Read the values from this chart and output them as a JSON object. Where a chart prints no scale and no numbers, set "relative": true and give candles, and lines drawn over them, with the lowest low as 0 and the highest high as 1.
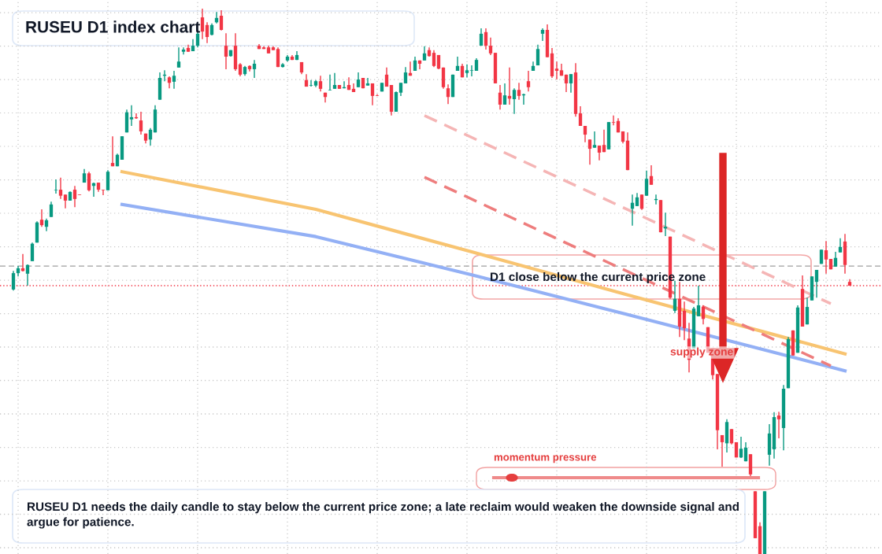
{
  "chart_data": {
    "type": "candlestick",
    "title": "RUSEU D1 index chart",
    "relative": true,
    "categories": [
      null,
      null,
      null,
      null,
      null,
      null,
      null,
      null,
      null,
      null,
      null,
      null,
      null,
      null,
      null,
      null,
      null,
      null,
      null,
      null,
      null,
      null,
      null,
      null,
      null,
      null,
      null,
      null,
      null,
      null,
      null,
      null,
      null,
      null,
      null,
      null,
      null,
      null,
      null,
      null,
      null,
      null,
      null,
      null,
      null,
      null,
      null,
      null,
      null,
      null,
      null,
      null,
      null,
      null,
      null,
      null,
      null,
      null,
      null,
      null,
      null,
      null,
      null,
      null,
      null,
      null,
      null,
      null,
      null,
      null,
      null,
      null,
      null,
      null,
      null,
      null,
      null,
      null,
      null,
      null,
      null,
      null,
      null,
      null,
      null,
      null,
      null,
      null,
      null,
      null,
      null,
      null,
      null,
      null,
      null,
      null,
      null,
      null,
      null,
      null,
      null,
      null,
      null,
      null,
      null,
      null,
      null,
      null,
      null,
      null,
      null,
      null,
      null,
      null,
      null,
      null,
      null,
      null,
      null,
      null,
      null,
      null,
      null,
      null,
      null,
      null,
      null,
      null,
      null,
      null,
      null,
      null,
      null,
      null,
      null,
      null,
      null,
      null,
      null,
      null,
      null,
      null,
      null,
      null,
      null,
      null,
      null,
      null,
      null,
      null,
      null,
      null,
      null,
      null,
      null,
      null,
      null,
      null,
      null,
      null,
      null,
      null,
      null,
      null,
      null,
      null,
      null,
      null,
      null,
      null,
      null,
      null,
      null,
      null,
      null,
      null,
      null,
      null
    ],
    "ohlc": [
      [
        0.485,
        0.519,
        0.483,
        0.515
      ],
      [
        0.515,
        0.528,
        0.509,
        0.524
      ],
      [
        0.524,
        0.55,
        0.518,
        0.519
      ],
      [
        0.514,
        0.531,
        0.492,
        0.53
      ],
      [
        0.537,
        0.571,
        0.537,
        0.569
      ],
      [
        0.571,
        0.61,
        0.571,
        0.608
      ],
      [
        0.613,
        0.632,
        0.6,
        0.603
      ],
      [
        0.6,
        0.615,
        0.592,
        0.612
      ],
      [
        0.618,
        0.646,
        0.618,
        0.641
      ],
      [
        0.667,
        0.687,
        0.661,
        0.668
      ],
      [
        0.668,
        0.69,
        0.651,
        0.657
      ],
      [
        0.659,
        0.659,
        0.634,
        0.648
      ],
      [
        0.648,
        0.665,
        0.648,
        0.664
      ],
      [
        0.668,
        0.675,
        0.636,
        0.651
      ],
      [
        0.659,
        0.659,
        0.658,
        0.658
      ],
      [
        0.681,
        0.706,
        0.681,
        0.698
      ],
      [
        0.698,
        0.701,
        0.665,
        0.667
      ],
      [
        0.675,
        0.681,
        0.655,
        0.68
      ],
      [
        0.681,
        0.681,
        0.664,
        0.668
      ],
      [
        0.668,
        0.668,
        0.658,
        0.667
      ],
      [
        0.667,
        0.704,
        0.667,
        0.701
      ],
      [
        0.717,
        0.766,
        0.711,
        0.711
      ],
      [
        0.711,
        0.734,
        0.711,
        0.732
      ],
      [
        0.723,
        0.766,
        0.723,
        0.766
      ],
      [
        0.773,
        0.815,
        0.773,
        0.81
      ],
      [
        0.797,
        0.823,
        0.785,
        0.801
      ],
      [
        0.801,
        0.808,
        0.798,
        0.799
      ],
      [
        0.795,
        0.811,
        0.769,
        0.775
      ],
      [
        0.771,
        0.771,
        0.753,
        0.758
      ],
      [
        0.76,
        0.781,
        0.749,
        0.778
      ],
      [
        0.773,
        0.823,
        0.773,
        0.815
      ],
      [
        0.833,
        0.883,
        0.833,
        0.873
      ],
      [
        0.877,
        0.887,
        0.867,
        0.879
      ],
      [
        0.874,
        0.876,
        0.854,
        0.864
      ],
      [
        0.866,
        0.886,
        0.853,
        0.877
      ],
      [
        0.892,
        0.929,
        0.892,
        0.903
      ],
      [
        0.921,
        0.929,
        0.916,
        0.925
      ],
      [
        0.928,
        0.934,
        0.921,
        0.921
      ],
      [
        0.922,
        0.944,
        0.922,
        0.932
      ],
      [
        0.932,
        0.958,
        0.929,
        0.954
      ],
      [
        0.984,
        1,
        0.944,
        0.958
      ],
      [
        0.97,
        0.975,
        0.937,
        0.948
      ],
      [
        0.952,
        0.973,
        0.951,
        0.97
      ],
      [
        0.975,
        0.994,
        0.973,
        0.983
      ],
      [
        0.987,
        0.997,
        0.96,
        0.961
      ],
      [
        0.932,
        0.955,
        0.889,
        0.912
      ],
      [
        0.913,
        0.924,
        0.912,
        0.924
      ],
      [
        0.932,
        0.955,
        0.886,
        0.889
      ],
      [
        0.898,
        0.9,
        0.876,
        0.879
      ],
      [
        0.88,
        0.895,
        0.877,
        0.893
      ],
      [
        0.895,
        0.896,
        0.885,
        0.889
      ],
      [
        0.889,
        0.906,
        0.873,
        0.899
      ],
      [
        0.932,
        0.935,
        0.926,
        0.926
      ],
      [
        0.929,
        0.931,
        0.926,
        0.926
      ],
      [
        0.929,
        0.932,
        0.918,
        0.918
      ],
      [
        0.929,
        0.931,
        0.924,
        0.924
      ],
      [
        0.926,
        0.929,
        0.893,
        0.893
      ],
      [
        0.893,
        0.9,
        0.892,
        0.898
      ],
      [
        0.905,
        0.915,
        0.903,
        0.912
      ],
      [
        0.912,
        0.915,
        0.906,
        0.906
      ],
      [
        0.906,
        0.922,
        0.906,
        0.915
      ],
      [
        0.902,
        0.902,
        0.88,
        0.883
      ],
      [
        0.869,
        0.88,
        0.857,
        0.857
      ],
      [
        0.859,
        0.869,
        0.857,
        0.86
      ],
      [
        0.859,
        0.869,
        0.856,
        0.867
      ],
      [
        0.867,
        0.877,
        0.848,
        0.853
      ],
      [
        0.846,
        0.846,
        0.828,
        0.838
      ],
      [
        0.85,
        0.879,
        0.85,
        0.851
      ],
      [
        0.853,
        0.882,
        0.853,
        0.86
      ],
      [
        0.86,
        0.86,
        0.853,
        0.853
      ],
      [
        0.854,
        0.867,
        0.854,
        0.856
      ],
      [
        0.86,
        0.874,
        0.851,
        0.851
      ],
      [
        0.853,
        0.863,
        0.847,
        0.847
      ],
      [
        0.856,
        0.883,
        0.856,
        0.87
      ],
      [
        0.873,
        0.873,
        0.854,
        0.854
      ],
      [
        0.859,
        0.873,
        0.859,
        0.863
      ],
      [
        0.863,
        0.863,
        0.823,
        0.84
      ],
      [
        0.841,
        0.843,
        0.84,
        0.84
      ],
      [
        0.848,
        0.864,
        0.848,
        0.864
      ],
      [
        0.879,
        0.892,
        0.857,
        0.857
      ],
      [
        0.86,
        0.86,
        0.804,
        0.811
      ],
      [
        0.811,
        0.848,
        0.811,
        0.847
      ],
      [
        0.846,
        0.864,
        0.84,
        0.864
      ],
      [
        0.863,
        0.893,
        0.863,
        0.883
      ],
      [
        0.882,
        0.903,
        0.877,
        0.877
      ],
      [
        0.886,
        0.912,
        0.886,
        0.905
      ],
      [
        0.905,
        0.905,
        0.889,
        0.899
      ],
      [
        0.905,
        0.931,
        0.905,
        0.918
      ],
      [
        0.924,
        0.929,
        0.912,
        0.913
      ],
      [
        0.919,
        0.924,
        0.893,
        0.895
      ],
      [
        0.915,
        0.915,
        0.889,
        0.89
      ],
      [
        0.892,
        0.892,
        0.853,
        0.856
      ],
      [
        0.854,
        0.861,
        0.825,
        0.838
      ],
      [
        0.838,
        0.879,
        0.838,
        0.879
      ],
      [
        0.886,
        0.912,
        0.886,
        0.895
      ],
      [
        0.895,
        0.899,
        0.874,
        0.874
      ],
      [
        0.882,
        0.898,
        0.874,
        0.887
      ],
      [
        0.886,
        0.896,
        0.876,
        0.887
      ],
      [
        0.886,
        0.909,
        0.886,
        0.906
      ],
      [
        0.932,
        0.964,
        0.932,
        0.954
      ],
      [
        0.957,
        0.964,
        0.925,
        0.932
      ],
      [
        0.932,
        0.947,
        0.915,
        0.918
      ],
      [
        0.919,
        0.919,
        0.863,
        0.863
      ],
      [
        0.846,
        0.86,
        0.815,
        0.824
      ],
      [
        0.824,
        0.863,
        0.824,
        0.841
      ],
      [
        0.84,
        0.892,
        0.824,
        0.835
      ],
      [
        0.834,
        0.854,
        0.807,
        0.851
      ],
      [
        0.851,
        0.864,
        0.833,
        0.84
      ],
      [
        0.841,
        0.844,
        0.824,
        0.843
      ],
      [
        0.867,
        0.886,
        0.848,
        0.856
      ],
      [
        0.886,
        0.903,
        0.886,
        0.895
      ],
      [
        0.896,
        0.934,
        0.896,
        0.926
      ],
      [
        0.954,
        0.964,
        0.941,
        0.961
      ],
      [
        0.961,
        0.971,
        0.911,
        0.911
      ],
      [
        0.918,
        0.928,
        0.873,
        0.876
      ],
      [
        0.89,
        0.903,
        0.87,
        0.886
      ],
      [
        0.887,
        0.899,
        0.877,
        0.877
      ],
      [
        0.879,
        0.879,
        0.847,
        0.863
      ],
      [
        0.863,
        0.88,
        0.846,
        0.88
      ],
      [
        0.883,
        0.9,
        0.802,
        0.807
      ],
      [
        0.808,
        0.821,
        0.785,
        0.785
      ],
      [
        0.785,
        0.785,
        0.755,
        0.769
      ],
      [
        0.76,
        0.76,
        0.714,
        0.743
      ],
      [
        0.745,
        0.775,
        0.745,
        0.75
      ],
      [
        0.749,
        0.749,
        0.722,
        0.736
      ],
      [
        0.75,
        0.778,
        0.737,
        0.737
      ],
      [
        0.742,
        0.792,
        0.742,
        0.792
      ],
      [
        0.792,
        0.804,
        0.786,
        0.791
      ],
      [
        0.794,
        0.799,
        0.773,
        0.773
      ],
      [
        0.775,
        0.775,
        0.753,
        0.756
      ],
      [
        0.758,
        0.773,
        0.704,
        0.704
      ],
      [
        0.633,
        0.659,
        0.602,
        0.644
      ],
      [
        0.638,
        0.662,
        0.638,
        0.654
      ],
      [
        0.659,
        0.659,
        0.631,
        0.633
      ],
      [
        0.657,
        0.703,
        0.657,
        0.688
      ],
      [
        0.693,
        0.713,
        0.677,
        0.677
      ],
      [
        0.649,
        0.659,
        0.641,
        0.651
      ],
      [
        0.649,
        0.649,
        0.59,
        0.59
      ],
      [
        0.597,
        0.626,
        0.583,
        0.6
      ],
      [
        0.582,
        0.582,
        0.468,
        0.47
      ],
      [
        0.446,
        0.501,
        0.442,
        0.468
      ],
      [
        0.468,
        0.499,
        0.398,
        0.417
      ],
      [
        0.446,
        0.463,
        0.392,
        0.414
      ],
      [
        0.395,
        0.424,
        0.333,
        0.356
      ],
      [
        0.377,
        0.453,
        0.377,
        0.45
      ],
      [
        0.436,
        0.492,
        0.436,
        0.456
      ],
      [
        0.453,
        0.456,
        0.421,
        0.431
      ],
      [
        0.416,
        0.416,
        0.369,
        0.369
      ],
      [
        0.378,
        0.378,
        0.32,
        0.328
      ],
      [
        0.33,
        0.33,
        0.192,
        0.227
      ],
      [
        0.218,
        0.218,
        0.16,
        0.205
      ],
      [
        0.203,
        0.247,
        0.186,
        0.242
      ],
      [
        0.229,
        0.229,
        0.201,
        0.203
      ],
      [
        0.205,
        0.205,
        0.177,
        0.177
      ],
      [
        0.177,
        0.215,
        0.176,
        0.193
      ],
      [
        0.17,
        0.205,
        0.17,
        0.195
      ],
      [
        0.183,
        0.183,
        0.14,
        0.146
      ],
      [
        0.115,
        0.115,
        0.029,
        0.029
      ],
      [
        0.051,
        0.058,
        0,
        0
      ],
      [
        0,
        0.115,
        0,
        0.115
      ],
      [
        0.182,
        0.238,
        0.162,
        0.221
      ],
      [
        0.192,
        0.26,
        0.175,
        0.251
      ],
      [
        0.254,
        0.261,
        0.212,
        0.247
      ],
      [
        0.231,
        0.31,
        0.19,
        0.303
      ],
      [
        0.304,
        0.398,
        0.304,
        0.394
      ],
      [
        0.41,
        0.41,
        0.364,
        0.364
      ],
      [
        0.369,
        0.456,
        0.369,
        0.452
      ],
      [
        0.486,
        0.511,
        0.417,
        0.417
      ],
      [
        0.421,
        0.47,
        0.421,
        0.453
      ],
      [
        0.465,
        0.509,
        0.465,
        0.509
      ],
      [
        0.499,
        0.521,
        0.47,
        0.521
      ],
      [
        0.532,
        0.558,
        0.532,
        0.558
      ],
      [
        0.557,
        0.574,
        0.514,
        0.54
      ],
      [
        0.541,
        0.541,
        0.522,
        0.522
      ],
      [
        0.527,
        0.554,
        0.527,
        0.543
      ],
      [
        0.553,
        0.579,
        0.553,
        0.563
      ],
      [
        0.573,
        0.587,
        0.514,
        0.53
      ],
      [
        0.499,
        0.504,
        0.492,
        0.492
      ]
    ],
    "series": [
      {
        "type": "line",
        "color": "#f8c471",
        "values": [
          null,
          null,
          null,
          null,
          null,
          null,
          null,
          null,
          null,
          null,
          null,
          null,
          null,
          null,
          null,
          null,
          null,
          null,
          null,
          null,
          null,
          null,
          null,
          0.701,
          null,
          null,
          null,
          null,
          null,
          null,
          null,
          null,
          null,
          null,
          null,
          null,
          null,
          null,
          null,
          null,
          null,
          null,
          null,
          null,
          null,
          null,
          null,
          null,
          null,
          null,
          null,
          null,
          null,
          null,
          null,
          null,
          null,
          null,
          null,
          null,
          null,
          null,
          null,
          null,
          0.632,
          null,
          null,
          null,
          null,
          null,
          null,
          null,
          null,
          null,
          null,
          null,
          null,
          null,
          null,
          null,
          null,
          null,
          null,
          null,
          null,
          null,
          null,
          null,
          null,
          null,
          null,
          null,
          null,
          null,
          null,
          null,
          null,
          0.554,
          null,
          null,
          null,
          null,
          null,
          null,
          null,
          null,
          null,
          null,
          null,
          null,
          null,
          null,
          null,
          null,
          null,
          null,
          null,
          null,
          null,
          null,
          null,
          null,
          null,
          null,
          null,
          null,
          null,
          null,
          null,
          null,
          0.475,
          null,
          null,
          null,
          null,
          null,
          null,
          null,
          null,
          null,
          null,
          null,
          null,
          null,
          null,
          null,
          null,
          null,
          null,
          null,
          null,
          null,
          null,
          null,
          null,
          null,
          null,
          null,
          null,
          null,
          null,
          null,
          null,
          null,
          null,
          null,
          null,
          null,
          null,
          null,
          null,
          null,
          null,
          null,
          null,
          null,
          0.367,
          null
        ]
      },
      {
        "type": "line",
        "color": "#93b0f5",
        "values": [
          null,
          null,
          null,
          null,
          null,
          null,
          null,
          null,
          null,
          null,
          null,
          null,
          null,
          null,
          null,
          null,
          null,
          null,
          null,
          null,
          null,
          null,
          null,
          0.641,
          null,
          null,
          null,
          null,
          null,
          null,
          null,
          null,
          null,
          null,
          null,
          null,
          null,
          null,
          null,
          null,
          null,
          null,
          null,
          null,
          null,
          null,
          null,
          null,
          null,
          null,
          null,
          null,
          null,
          null,
          null,
          null,
          null,
          null,
          null,
          null,
          null,
          null,
          null,
          null,
          0.582,
          null,
          null,
          null,
          null,
          null,
          null,
          null,
          null,
          null,
          null,
          null,
          null,
          null,
          null,
          null,
          null,
          null,
          null,
          null,
          null,
          null,
          null,
          null,
          null,
          null,
          null,
          null,
          null,
          null,
          null,
          null,
          null,
          0.512,
          null,
          null,
          null,
          null,
          null,
          null,
          null,
          null,
          null,
          null,
          null,
          null,
          null,
          null,
          null,
          null,
          null,
          null,
          null,
          null,
          null,
          null,
          null,
          null,
          null,
          null,
          null,
          null,
          null,
          null,
          null,
          null,
          0.439,
          null,
          null,
          null,
          null,
          null,
          null,
          null,
          null,
          null,
          null,
          null,
          null,
          null,
          null,
          null,
          null,
          null,
          null,
          null,
          null,
          null,
          null,
          null,
          null,
          null,
          null,
          null,
          null,
          null,
          null,
          null,
          null,
          null,
          null,
          null,
          null,
          null,
          null,
          null,
          null,
          null,
          null,
          null,
          null,
          null,
          0.336,
          null
        ]
      },
      {
        "type": "line",
        "color": "#ee7d7d",
        "line_style": "dashed",
        "values": [
          null,
          null,
          null,
          null,
          null,
          null,
          null,
          null,
          null,
          null,
          null,
          null,
          null,
          null,
          null,
          null,
          null,
          null,
          null,
          null,
          null,
          null,
          null,
          null,
          null,
          null,
          null,
          null,
          null,
          null,
          null,
          null,
          null,
          null,
          null,
          null,
          null,
          null,
          null,
          null,
          null,
          null,
          null,
          null,
          null,
          null,
          null,
          null,
          null,
          null,
          null,
          null,
          null,
          null,
          null,
          null,
          null,
          null,
          null,
          null,
          null,
          null,
          null,
          null,
          null,
          null,
          null,
          null,
          null,
          null,
          null,
          null,
          null,
          null,
          null,
          null,
          null,
          null,
          null,
          null,
          null,
          null,
          null,
          null,
          null,
          null,
          null,
          0.691,
          null,
          null,
          null,
          null,
          null,
          null,
          null,
          null,
          null,
          null,
          null,
          null,
          null,
          null,
          null,
          null,
          null,
          null,
          null,
          null,
          null,
          null,
          null,
          null,
          null,
          null,
          null,
          null,
          null,
          null,
          null,
          null,
          null,
          null,
          null,
          null,
          null,
          null,
          null,
          null,
          null,
          null,
          null,
          null,
          null,
          null,
          null,
          null,
          null,
          null,
          null,
          null,
          null,
          null,
          null,
          null,
          null,
          null,
          null,
          null,
          null,
          null,
          null,
          null,
          null,
          null,
          null,
          null,
          null,
          null,
          null,
          null,
          null,
          null,
          null,
          null,
          null,
          null,
          null,
          null,
          null,
          null,
          null,
          null,
          null,
          0.345,
          null,
          null,
          null,
          null
        ]
      },
      {
        "type": "line",
        "color": "#f5b5b5",
        "line_style": "dashed",
        "values": [
          null,
          null,
          null,
          null,
          null,
          null,
          null,
          null,
          null,
          null,
          null,
          null,
          null,
          null,
          null,
          null,
          null,
          null,
          null,
          null,
          null,
          null,
          null,
          null,
          null,
          null,
          null,
          null,
          null,
          null,
          null,
          null,
          null,
          null,
          null,
          null,
          null,
          null,
          null,
          null,
          null,
          null,
          null,
          null,
          null,
          null,
          null,
          null,
          null,
          null,
          null,
          null,
          null,
          null,
          null,
          null,
          null,
          null,
          null,
          null,
          null,
          null,
          null,
          null,
          null,
          null,
          null,
          null,
          null,
          null,
          null,
          null,
          null,
          null,
          null,
          null,
          null,
          null,
          null,
          null,
          null,
          null,
          null,
          null,
          null,
          null,
          null,
          0.804,
          null,
          null,
          null,
          null,
          null,
          null,
          null,
          null,
          null,
          null,
          null,
          null,
          null,
          null,
          null,
          null,
          null,
          null,
          null,
          null,
          null,
          null,
          null,
          null,
          null,
          null,
          null,
          null,
          null,
          null,
          null,
          null,
          null,
          null,
          null,
          null,
          null,
          null,
          null,
          null,
          null,
          null,
          null,
          null,
          null,
          null,
          null,
          null,
          null,
          null,
          null,
          null,
          null,
          null,
          null,
          null,
          null,
          null,
          null,
          null,
          null,
          null,
          null,
          null,
          null,
          null,
          null,
          null,
          null,
          null,
          null,
          null,
          null,
          null,
          null,
          null,
          null,
          null,
          null,
          null,
          null,
          null,
          null,
          null,
          null,
          0.459,
          null,
          null,
          null,
          null
        ]
      }
    ],
    "ref_lines": [
      {
        "axis": "y",
        "value": 0.528,
        "color": "#9e9e9e",
        "line_style": "dashed"
      },
      {
        "axis": "y",
        "value": 0.492,
        "color": "#f23645",
        "line_style": "dotted"
      }
    ],
    "annotations": [
      "D1 close below the current price zone",
      "supply zone",
      "momentum pressure",
      "RUSEU D1 needs the daily candle to stay below the current price zone; a late reclaim would weaken the downside signal and argue for patience."
    ],
    "grid": true,
    "legend": false
  }
}
